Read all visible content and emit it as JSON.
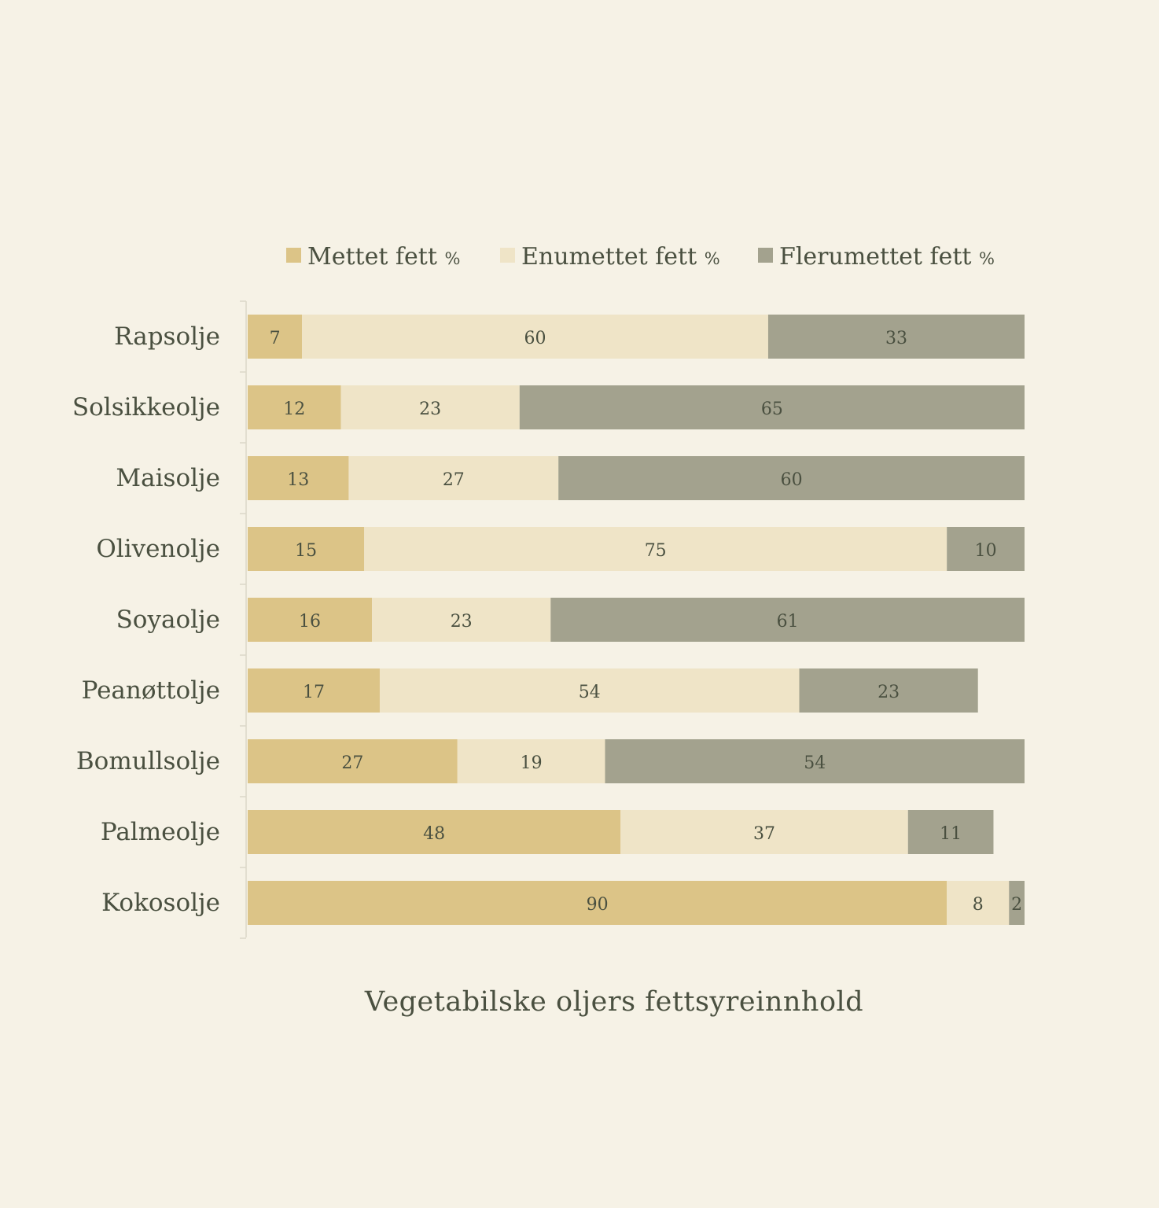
{
  "chart_data": {
    "type": "bar",
    "orientation": "horizontal",
    "stacked": true,
    "title": "Vegetabilske oljers fettsyreinnhold",
    "xlabel": "",
    "ylabel": "",
    "xlim": [
      0,
      100
    ],
    "legend_position": "top",
    "grid": false,
    "categories": [
      "Rapsolje",
      "Solsikkeolje",
      "Maisolje",
      "Olivenolje",
      "Soyaolje",
      "Peanøttolje",
      "Bomullsolje",
      "Palmeolje",
      "Kokosolje"
    ],
    "series": [
      {
        "name": "Mettet fett",
        "unit": "%",
        "color": "#dcc487",
        "values": [
          7,
          12,
          13,
          15,
          16,
          17,
          27,
          48,
          90
        ]
      },
      {
        "name": "Enumettet fett",
        "unit": "%",
        "color": "#efe4c7",
        "values": [
          60,
          23,
          27,
          75,
          23,
          54,
          19,
          37,
          8
        ]
      },
      {
        "name": "Flerumettet fett",
        "unit": "%",
        "color": "#a3a28e",
        "values": [
          33,
          65,
          60,
          10,
          61,
          23,
          54,
          11,
          2
        ]
      }
    ]
  },
  "colors": {
    "background": "#f6f2e6",
    "text": "#4a5040",
    "axis": "#dcd8c8"
  }
}
